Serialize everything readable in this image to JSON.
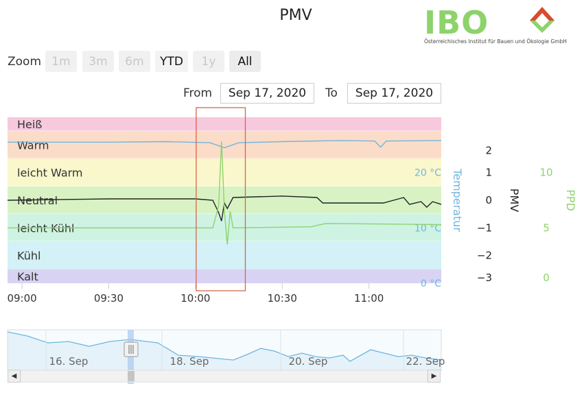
{
  "title": "PMV",
  "logo": {
    "name": "IBO",
    "subtitle": "Österreichisches Institut für Bauen und Ökologie GmbH",
    "mark_colors": [
      "#d94a2e",
      "#8dd36b"
    ]
  },
  "zoom": {
    "label": "Zoom",
    "buttons": [
      {
        "label": "1m",
        "state": "disabled"
      },
      {
        "label": "3m",
        "state": "disabled"
      },
      {
        "label": "6m",
        "state": "disabled"
      },
      {
        "label": "YTD",
        "state": "enabled"
      },
      {
        "label": "1y",
        "state": "disabled"
      },
      {
        "label": "All",
        "state": "selected"
      }
    ]
  },
  "range": {
    "from_label": "From",
    "from_value": "Sep 17, 2020",
    "to_label": "To",
    "to_value": "Sep 17, 2020"
  },
  "chart_data": {
    "type": "line",
    "title": "PMV",
    "comfort_bands": [
      {
        "label": "Heiß",
        "pmv_from": 2.5,
        "pmv_to": 3,
        "color": "#f7c9dd"
      },
      {
        "label": "Warm",
        "pmv_from": 1.5,
        "pmv_to": 2.5,
        "color": "#fbdcc8"
      },
      {
        "label": "leicht Warm",
        "pmv_from": 0.5,
        "pmv_to": 1.5,
        "color": "#faf7cc"
      },
      {
        "label": "Neutral",
        "pmv_from": -0.5,
        "pmv_to": 0.5,
        "color": "#d9f2c4"
      },
      {
        "label": "leicht Kühl",
        "pmv_from": -1.5,
        "pmv_to": -0.5,
        "color": "#cef3e3"
      },
      {
        "label": "Kühl",
        "pmv_from": -2.5,
        "pmv_to": -1.5,
        "color": "#d3f1f6"
      },
      {
        "label": "Kalt",
        "pmv_from": -3,
        "pmv_to": -2.5,
        "color": "#d8d3f3"
      }
    ],
    "x_range": [
      "08:55",
      "11:25"
    ],
    "x_ticks": [
      "09:00",
      "09:30",
      "10:00",
      "10:30",
      "11:00"
    ],
    "axes": {
      "pmv": {
        "label": "PMV",
        "ticks": [
          2,
          1,
          0,
          -1,
          -2,
          -3
        ],
        "range": [
          -3,
          3
        ]
      },
      "temperature": {
        "label": "Temperatur",
        "ticks": [
          "20 °C",
          "10 °C",
          "0 °C"
        ],
        "values": [
          20,
          10,
          0
        ],
        "range": [
          0,
          30
        ],
        "color": "#6fb5e0"
      },
      "ppd": {
        "label": "PPD",
        "ticks": [
          "10",
          "5",
          "0"
        ],
        "values": [
          10,
          5,
          0
        ],
        "range": [
          0,
          15
        ],
        "color": "#8dd36b"
      }
    },
    "series": [
      {
        "axis": "temperature",
        "color": "#6fb5e0",
        "points": [
          [
            "08:55",
            25.5
          ],
          [
            "09:30",
            25.5
          ],
          [
            "09:50",
            25.6
          ],
          [
            "10:05",
            25.4
          ],
          [
            "10:10",
            24.5
          ],
          [
            "10:15",
            25.4
          ],
          [
            "10:30",
            25.6
          ],
          [
            "10:50",
            25.8
          ],
          [
            "11:02",
            25.7
          ],
          [
            "11:04",
            24.6
          ],
          [
            "11:06",
            25.7
          ],
          [
            "11:25",
            25.8
          ]
        ]
      },
      {
        "axis": "pmv",
        "color": "#222222",
        "points": [
          [
            "08:55",
            0.0
          ],
          [
            "09:30",
            0.05
          ],
          [
            "10:00",
            0.05
          ],
          [
            "10:06",
            0.0
          ],
          [
            "10:08",
            -0.45
          ],
          [
            "10:09",
            -0.75
          ],
          [
            "10:10",
            -0.1
          ],
          [
            "10:11",
            -0.3
          ],
          [
            "10:13",
            0.1
          ],
          [
            "10:30",
            0.15
          ],
          [
            "10:42",
            0.1
          ],
          [
            "10:44",
            -0.1
          ],
          [
            "11:05",
            -0.1
          ],
          [
            "11:12",
            0.1
          ],
          [
            "11:14",
            -0.15
          ],
          [
            "11:18",
            -0.05
          ],
          [
            "11:20",
            -0.25
          ],
          [
            "11:22",
            -0.05
          ],
          [
            "11:25",
            -0.15
          ]
        ]
      },
      {
        "axis": "ppd",
        "color": "#8dd36b",
        "points": [
          [
            "08:55",
            5.0
          ],
          [
            "10:06",
            5.0
          ],
          [
            "10:08",
            7.0
          ],
          [
            "10:09",
            12.8
          ],
          [
            "10:10",
            6.5
          ],
          [
            "10:11",
            3.5
          ],
          [
            "10:12",
            6.5
          ],
          [
            "10:13",
            5.0
          ],
          [
            "10:40",
            5.1
          ],
          [
            "10:45",
            5.4
          ],
          [
            "11:25",
            5.3
          ]
        ]
      }
    ],
    "highlight": {
      "from": "10:00",
      "to": "10:17",
      "color": "#d9634a"
    }
  },
  "navigator": {
    "labels": [
      "16. Sep",
      "18. Sep",
      "20. Sep",
      "22. Sep"
    ],
    "line_color": "#6fb5e0",
    "selected_day": "Sep 17, 2020"
  }
}
